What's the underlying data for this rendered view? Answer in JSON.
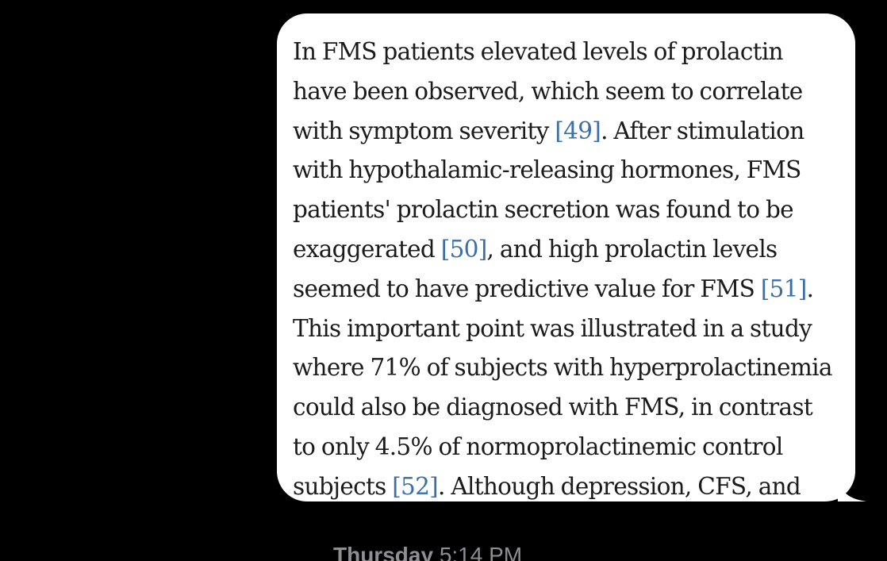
{
  "message": {
    "lines": [
      [
        {
          "text": "In FMS patients elevated levels of prolactin"
        }
      ],
      [
        {
          "text": "have been observed, which seem to correlate"
        }
      ],
      [
        {
          "text": "with symptom severity "
        },
        {
          "text": "[49]",
          "cite": true
        },
        {
          "text": ". After stimulation"
        }
      ],
      [
        {
          "text": "with hypothalamic-releasing hormones, FMS"
        }
      ],
      [
        {
          "text": "patients' prolactin secretion was found to be"
        }
      ],
      [
        {
          "text": "exaggerated "
        },
        {
          "text": "[50]",
          "cite": true
        },
        {
          "text": ", and high prolactin levels"
        }
      ],
      [
        {
          "text": "seemed to have predictive value for FMS "
        },
        {
          "text": "[51]",
          "cite": true
        },
        {
          "text": "."
        }
      ],
      [
        {
          "text": "This important point was illustrated in a study"
        }
      ],
      [
        {
          "text": "where 71% of subjects with hyperprolactinemia"
        }
      ],
      [
        {
          "text": "could also be diagnosed with FMS, in contrast"
        }
      ],
      [
        {
          "text": "to only 4.5% of normoprolactinemic control"
        }
      ],
      [
        {
          "text": "subjects "
        },
        {
          "text": "[52]",
          "cite": true
        },
        {
          "text": ". Although depression, CFS, and"
        }
      ]
    ]
  },
  "timestamp": {
    "day": "Thursday",
    "time": "5:14 PM"
  },
  "colors": {
    "background": "#000000",
    "bubble": "#ffffff",
    "text": "#1b1b1b",
    "citation_link": "#3a6fa8",
    "timestamp": "#8e8e93"
  }
}
